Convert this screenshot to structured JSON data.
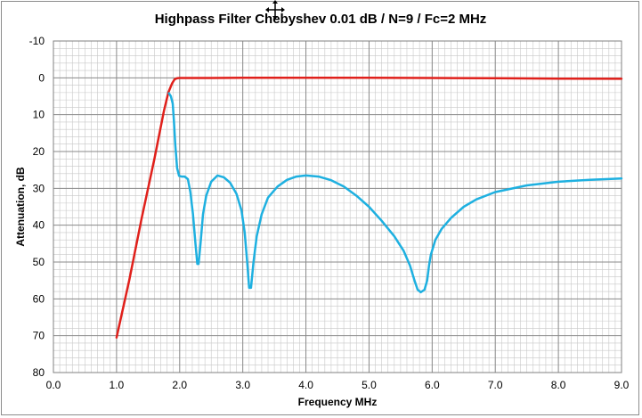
{
  "chart_data": {
    "type": "line",
    "title": "Highpass Filter Chebyshev  0.01 dB / N=9 / Fc=2 MHz",
    "xlabel": "Frequency MHz",
    "ylabel": "Attenuation, dB",
    "xlim": [
      0,
      9
    ],
    "ylim": [
      -10,
      80
    ],
    "y_inverted": true,
    "x_ticks": [
      "0.0",
      "1.0",
      "2.0",
      "3.0",
      "4.0",
      "5.0",
      "6.0",
      "7.0",
      "8.0",
      "9.0"
    ],
    "y_ticks": [
      "-10",
      "0",
      "10",
      "20",
      "30",
      "40",
      "50",
      "60",
      "70",
      "80"
    ],
    "x_major_step": 1,
    "y_major_step": 10,
    "x_minor_step": 0.1,
    "y_minor_step": 2,
    "grid": true,
    "legend": "none",
    "series": [
      {
        "color": "#e0201b",
        "points": [
          [
            1.0,
            70.5
          ],
          [
            1.2,
            55
          ],
          [
            1.4,
            38
          ],
          [
            1.6,
            22
          ],
          [
            1.75,
            9
          ],
          [
            1.82,
            4.0
          ],
          [
            1.88,
            1.5
          ],
          [
            1.92,
            0.4
          ],
          [
            1.96,
            0.1
          ],
          [
            2.0,
            0.05
          ],
          [
            2.5,
            0.05
          ],
          [
            3.0,
            0.0
          ],
          [
            5.0,
            0.0
          ],
          [
            6.0,
            0.05
          ],
          [
            7.0,
            0.1
          ],
          [
            8.0,
            0.2
          ],
          [
            9.0,
            0.25
          ]
        ]
      },
      {
        "color": "#1eb0e0",
        "points": [
          [
            1.83,
            4.2
          ],
          [
            1.86,
            5.0
          ],
          [
            1.89,
            7.0
          ],
          [
            1.91,
            12
          ],
          [
            1.93,
            18
          ],
          [
            1.96,
            24.5
          ],
          [
            1.99,
            26.6
          ],
          [
            2.03,
            26.8
          ],
          [
            2.08,
            26.8
          ],
          [
            2.13,
            27.5
          ],
          [
            2.17,
            31
          ],
          [
            2.21,
            37
          ],
          [
            2.25,
            45
          ],
          [
            2.28,
            50.5
          ],
          [
            2.3,
            50.5
          ],
          [
            2.33,
            45
          ],
          [
            2.37,
            37
          ],
          [
            2.42,
            32
          ],
          [
            2.5,
            28.2
          ],
          [
            2.6,
            26.5
          ],
          [
            2.7,
            27
          ],
          [
            2.8,
            28.5
          ],
          [
            2.9,
            31.5
          ],
          [
            2.98,
            36
          ],
          [
            3.03,
            42
          ],
          [
            3.07,
            50
          ],
          [
            3.1,
            57
          ],
          [
            3.13,
            57
          ],
          [
            3.17,
            50
          ],
          [
            3.22,
            43
          ],
          [
            3.3,
            37
          ],
          [
            3.4,
            32.5
          ],
          [
            3.55,
            29.5
          ],
          [
            3.7,
            27.7
          ],
          [
            3.85,
            26.8
          ],
          [
            4.0,
            26.5
          ],
          [
            4.2,
            26.8
          ],
          [
            4.4,
            27.8
          ],
          [
            4.6,
            29.5
          ],
          [
            4.8,
            32
          ],
          [
            5.0,
            35
          ],
          [
            5.2,
            38.8
          ],
          [
            5.4,
            43
          ],
          [
            5.55,
            47
          ],
          [
            5.65,
            51
          ],
          [
            5.72,
            55
          ],
          [
            5.77,
            57.5
          ],
          [
            5.82,
            58.2
          ],
          [
            5.88,
            57.5
          ],
          [
            5.92,
            55
          ],
          [
            5.95,
            51
          ],
          [
            5.98,
            48
          ],
          [
            6.05,
            44
          ],
          [
            6.15,
            41
          ],
          [
            6.3,
            38
          ],
          [
            6.5,
            35
          ],
          [
            6.7,
            33
          ],
          [
            7.0,
            31
          ],
          [
            7.5,
            29.2
          ],
          [
            8.0,
            28.2
          ],
          [
            8.5,
            27.7
          ],
          [
            9.0,
            27.3
          ]
        ]
      }
    ]
  }
}
